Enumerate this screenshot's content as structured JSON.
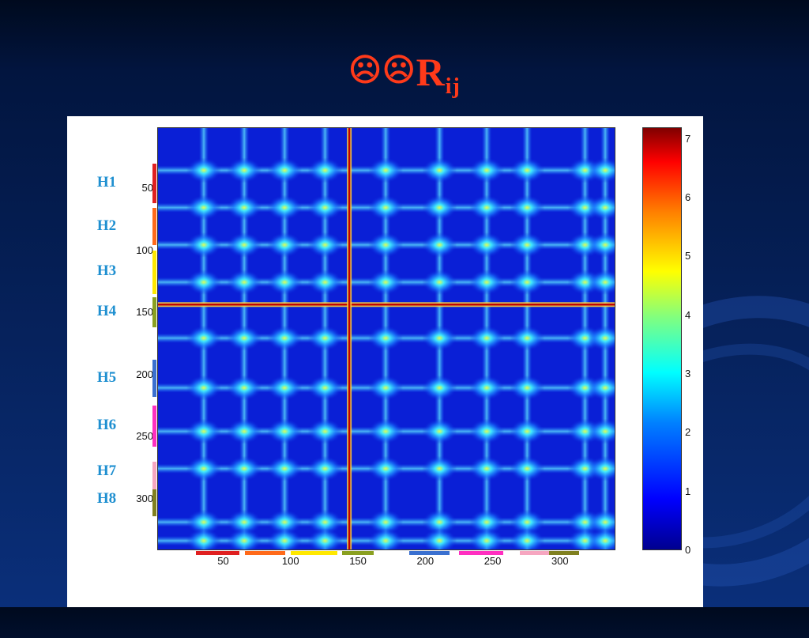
{
  "slide": {
    "title_main": "R",
    "title_sub": "ij",
    "title_glyphs": "☹☹"
  },
  "chart_data": {
    "type": "heatmap",
    "title": "",
    "x_range": [
      1,
      340
    ],
    "y_range": [
      1,
      340
    ],
    "x_ticks": [
      "50",
      "100",
      "150",
      "200",
      "250",
      "300"
    ],
    "y_ticks": [
      "50",
      "100",
      "150",
      "200",
      "250",
      "300"
    ],
    "colorbar_range": [
      0,
      7.2
    ],
    "colorbar_ticks": [
      "0",
      "1",
      "2",
      "3",
      "4",
      "5",
      "6",
      "7"
    ],
    "highlight_lines": [
      {
        "axis": "row",
        "position": 143,
        "value": 6.5
      },
      {
        "axis": "column",
        "position": 143,
        "value": 6.5
      }
    ],
    "bright_columns": [
      35,
      65,
      95,
      125,
      170,
      210,
      245,
      275,
      318,
      333
    ],
    "helix_labels": [
      {
        "name": "H1",
        "color": "#e02020",
        "start": 30,
        "end": 62
      },
      {
        "name": "H2",
        "color": "#ff6a1a",
        "start": 66,
        "end": 96
      },
      {
        "name": "H3",
        "color": "#ffe800",
        "start": 100,
        "end": 135
      },
      {
        "name": "H4",
        "color": "#8aa020",
        "start": 138,
        "end": 162
      },
      {
        "name": "H5",
        "color": "#3a70d0",
        "start": 188,
        "end": 218
      },
      {
        "name": "H6",
        "color": "#ff2fc0",
        "start": 225,
        "end": 258
      },
      {
        "name": "H7",
        "color": "#f6a6c0",
        "start": 270,
        "end": 292
      },
      {
        "name": "H8",
        "color": "#808020",
        "start": 292,
        "end": 314
      }
    ]
  }
}
